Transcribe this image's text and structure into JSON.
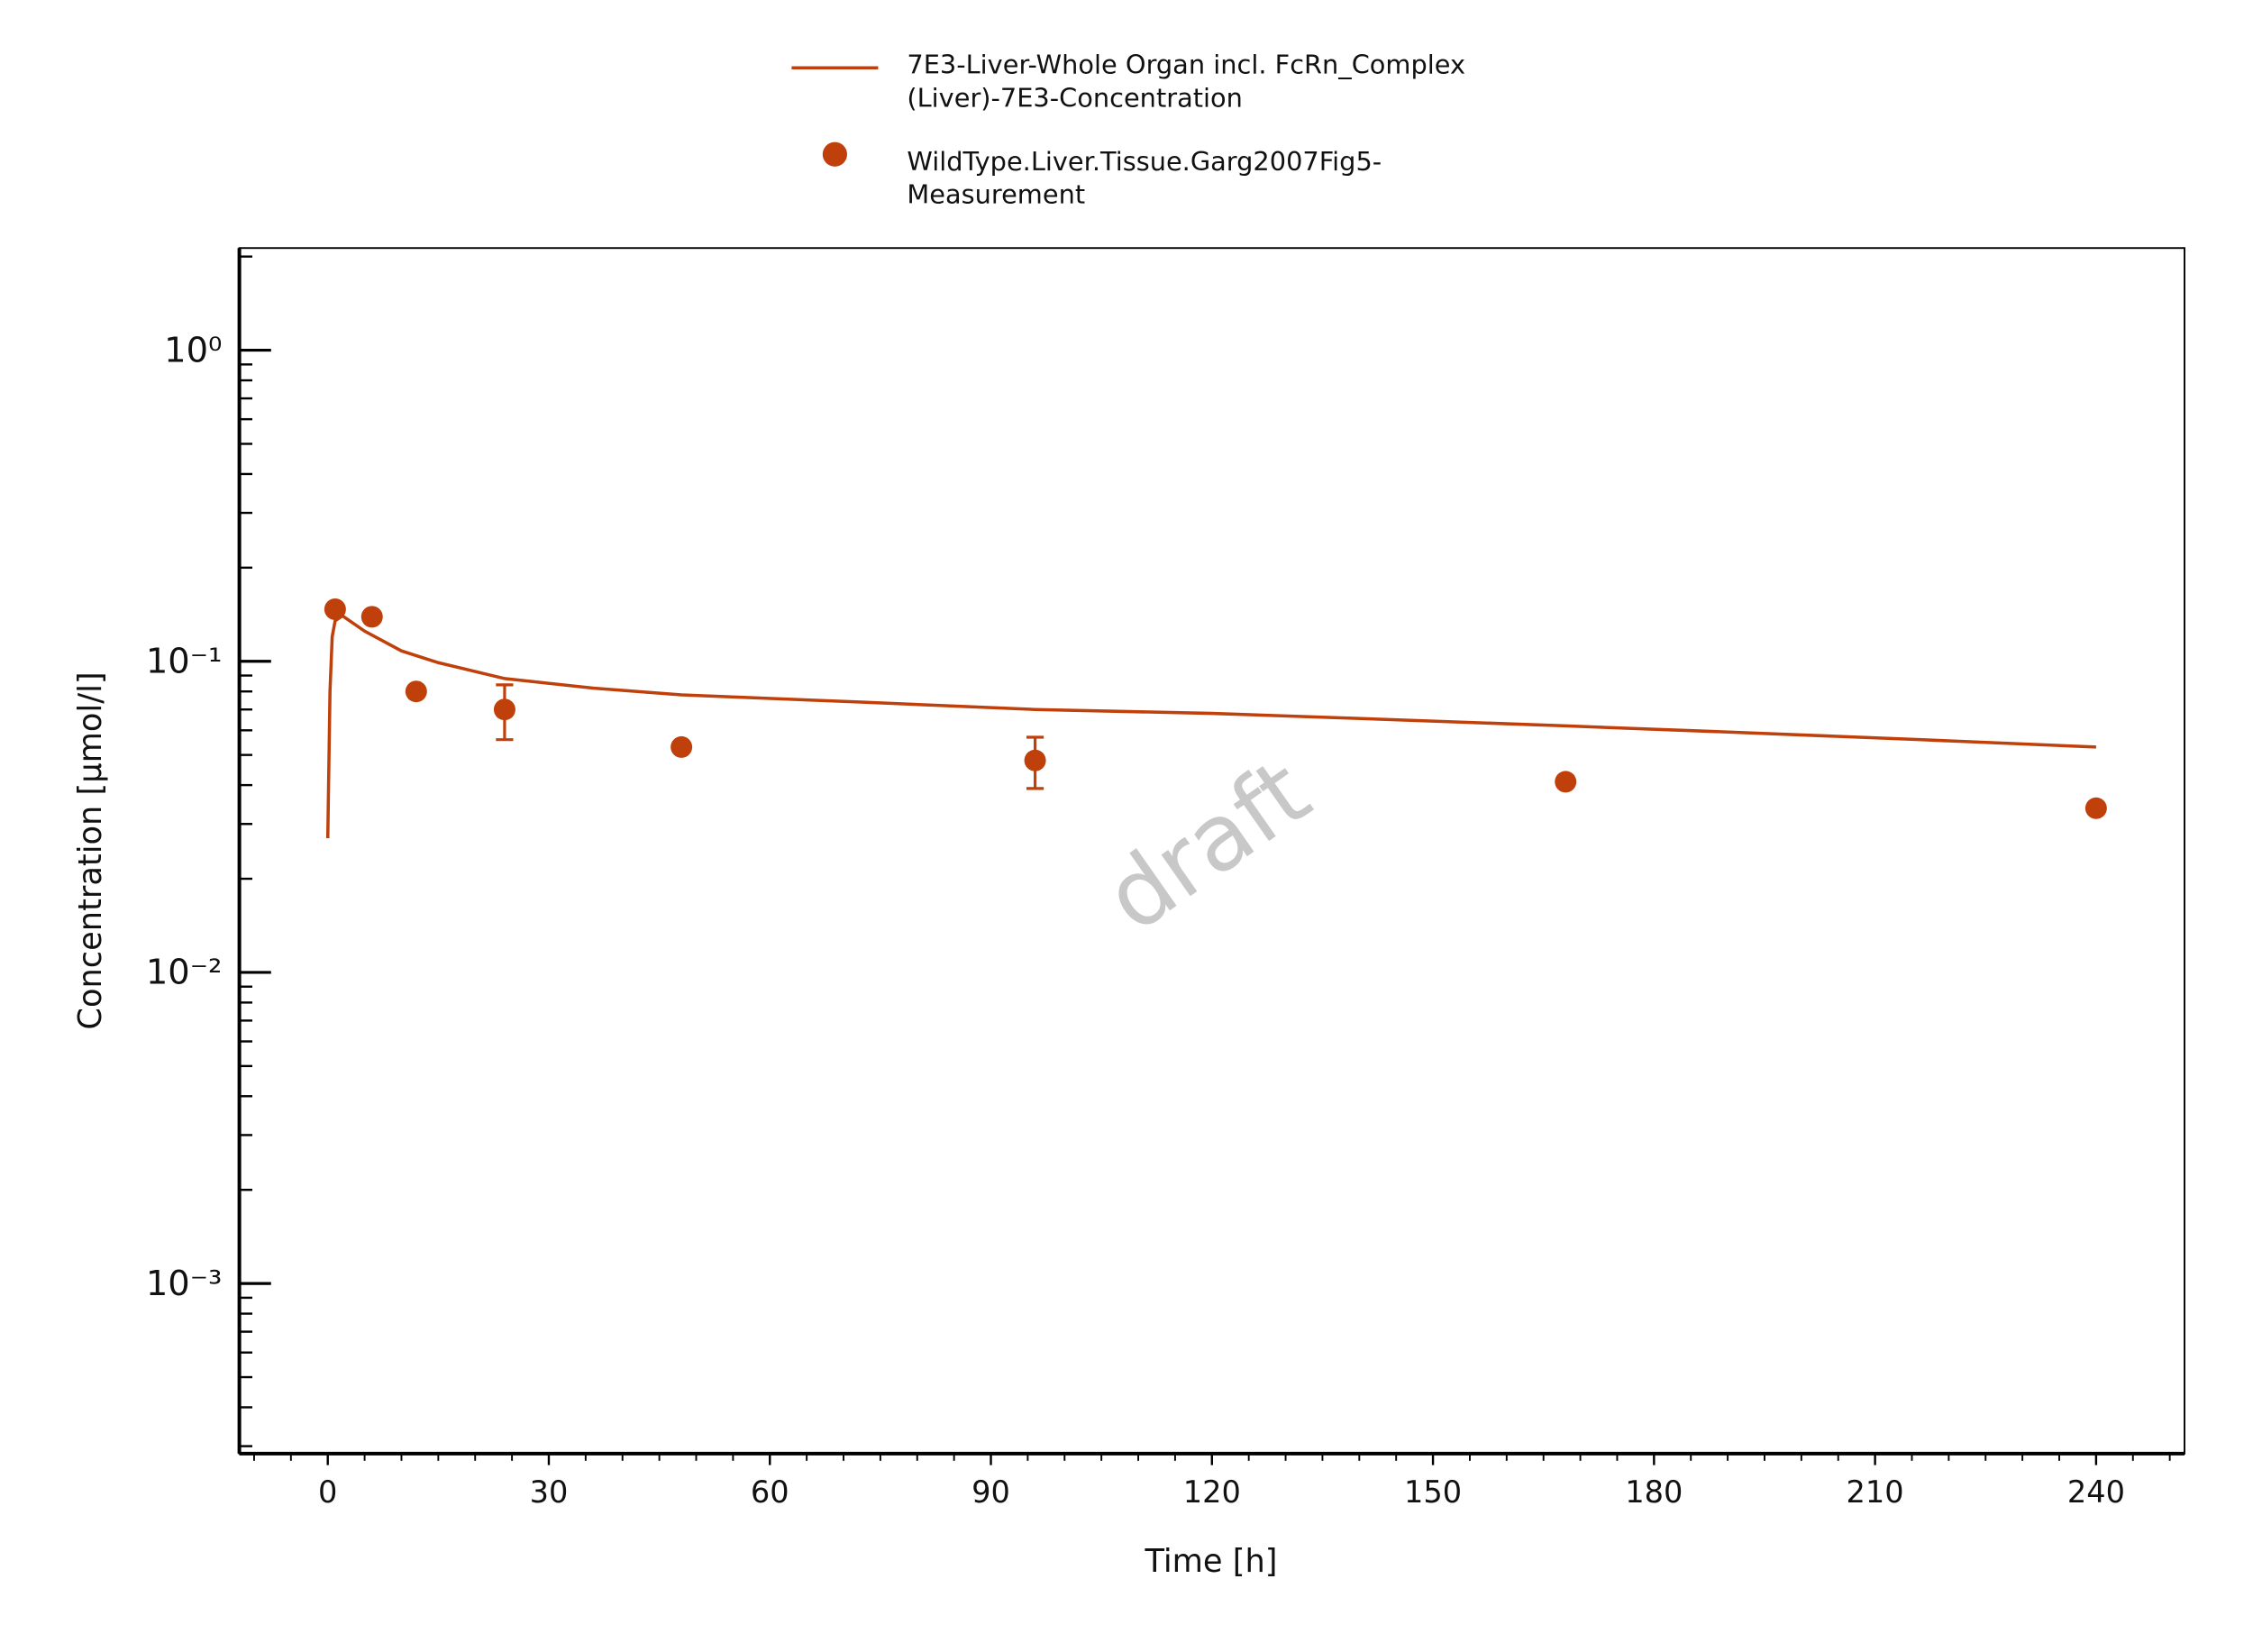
{
  "chart_data": {
    "type": "line",
    "xlabel": "Time [h]",
    "ylabel": "Concentration [µmol/l]",
    "watermark": "draft",
    "xlim": [
      -12,
      252
    ],
    "xticks": [
      0,
      30,
      60,
      90,
      120,
      150,
      180,
      210,
      240
    ],
    "ylim": [
      0.000284,
      2.13
    ],
    "yscale": "log",
    "yticks": [
      {
        "value": 1,
        "label": "10⁰"
      },
      {
        "value": 0.1,
        "label": "10⁻¹"
      },
      {
        "value": 0.01,
        "label": "10⁻²"
      },
      {
        "value": 0.001,
        "label": "10⁻³"
      }
    ],
    "legend": "top",
    "series": [
      {
        "name": "7E3-Liver-Whole Organ incl. FcRn_Complex (Liver)-7E3-Concentration",
        "kind": "line",
        "color": "#bf400a",
        "x": [
          0,
          0.3,
          0.6,
          1,
          2,
          5,
          10,
          15,
          24,
          36,
          48,
          72,
          96,
          120,
          144,
          168,
          192,
          216,
          240
        ],
        "values": [
          0.027,
          0.08,
          0.12,
          0.135,
          0.14,
          0.125,
          0.108,
          0.099,
          0.088,
          0.082,
          0.078,
          0.074,
          0.07,
          0.068,
          0.065,
          0.062,
          0.059,
          0.056,
          0.053
        ]
      },
      {
        "name": "WildType.Liver.Tissue.Garg2007Fig5-Measurement",
        "kind": "scatter",
        "color": "#bf400a",
        "x": [
          1,
          6,
          12,
          24,
          48,
          96,
          168,
          240
        ],
        "values": [
          0.147,
          0.139,
          0.08,
          0.07,
          0.053,
          0.048,
          0.041,
          0.0337
        ],
        "errors": [
          null,
          null,
          null,
          0.014,
          null,
          0.009,
          null,
          null
        ]
      }
    ]
  }
}
